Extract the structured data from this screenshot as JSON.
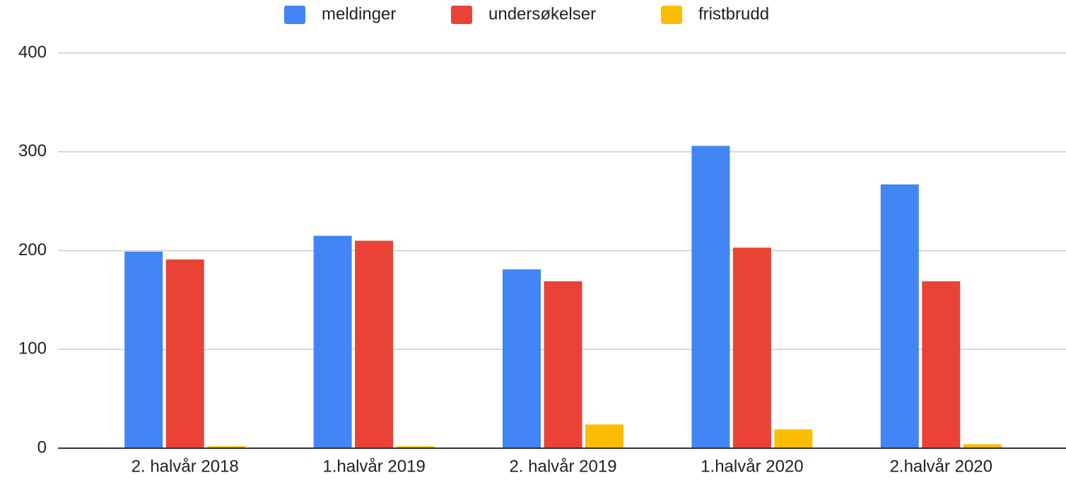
{
  "chart_data": {
    "type": "bar",
    "categories": [
      "2. halvår 2018",
      "1.halvår 2019",
      "2. halvår 2019",
      "1.halvår 2020",
      "2.halvår 2020"
    ],
    "series": [
      {
        "name": "meldinger",
        "color": "#4285f4",
        "values": [
          199,
          215,
          181,
          306,
          267
        ]
      },
      {
        "name": "undersøkelser",
        "color": "#ea4335",
        "values": [
          191,
          210,
          169,
          203,
          169
        ]
      },
      {
        "name": "fristbrudd",
        "color": "#fbbc04",
        "values": [
          2,
          2,
          24,
          19,
          4
        ]
      }
    ],
    "ylim": [
      0,
      400
    ],
    "yticks": [
      0,
      100,
      200,
      300,
      400
    ],
    "grid": true,
    "legend": "top"
  }
}
